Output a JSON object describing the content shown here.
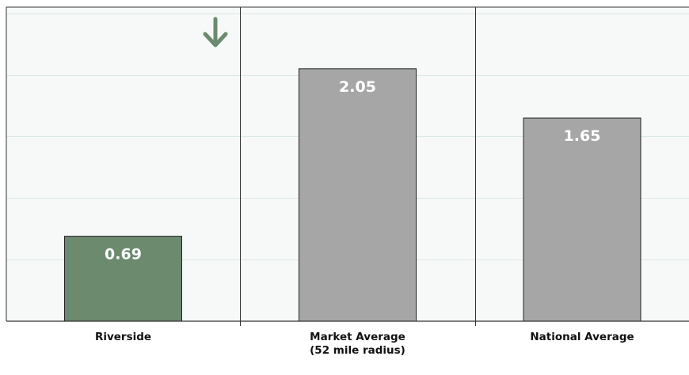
{
  "chart_data": {
    "type": "bar",
    "title": "",
    "xlabel": "",
    "ylabel": "",
    "categories": [
      [
        "Riverside"
      ],
      [
        "Market Average",
        "(52 mile radius)"
      ],
      [
        "National Average"
      ]
    ],
    "values": [
      0.69,
      2.05,
      1.65
    ],
    "value_labels": [
      "0.69",
      "2.05",
      "1.65"
    ],
    "ylim": [
      0,
      2.55
    ],
    "grid": true,
    "highlight_index": 0,
    "trend_indicator": "down-arrow"
  },
  "colors": {
    "highlight_bar": "#6b8a6e",
    "comparison_bar": "#a6a6a6",
    "arrow": "#6b8a6e",
    "panel_bg": "#f6f9f7",
    "grid": "#dce8e2"
  }
}
